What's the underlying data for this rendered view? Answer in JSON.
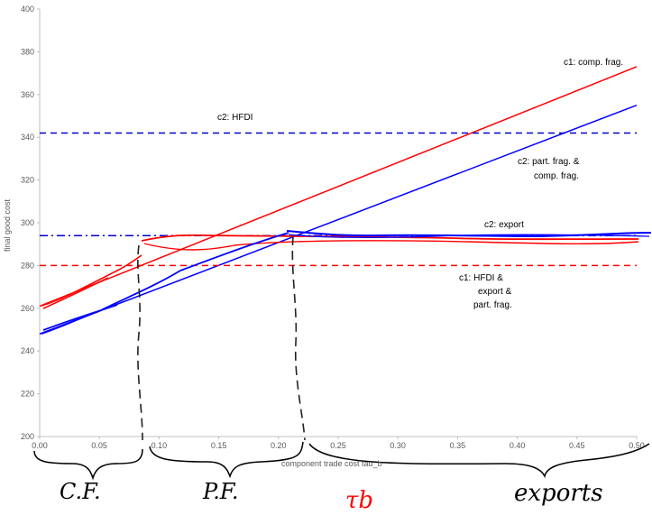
{
  "chart_data": {
    "type": "line",
    "title": "",
    "xlabel": "component trade cost tau_b",
    "ylabel": "final good cost",
    "xlim": [
      0.0,
      0.5
    ],
    "ylim": [
      200,
      400
    ],
    "x_ticks": [
      "0.00",
      "0.05",
      "0.10",
      "0.15",
      "0.20",
      "0.25",
      "0.30",
      "0.35",
      "0.40",
      "0.45",
      "0.50"
    ],
    "y_ticks": [
      "200",
      "220",
      "240",
      "260",
      "280",
      "300",
      "320",
      "340",
      "360",
      "380",
      "400"
    ],
    "grid": false,
    "series": [
      {
        "name": "c1: comp. frag.",
        "color": "#ff0000",
        "style": "solid",
        "x": [
          0.0,
          0.5
        ],
        "y": [
          261,
          373
        ]
      },
      {
        "name": "c2: part. frag. & comp. frag.",
        "color": "#0000ff",
        "style": "solid",
        "x": [
          0.0,
          0.5
        ],
        "y": [
          248,
          355
        ]
      },
      {
        "name": "c2: HFDI",
        "color": "#0000cc",
        "style": "dashed",
        "x": [
          0.0,
          0.5
        ],
        "y": [
          342,
          342
        ]
      },
      {
        "name": "c2: export",
        "color": "#0000cc",
        "style": "dashdot",
        "x": [
          0.0,
          0.5
        ],
        "y": [
          294,
          294
        ]
      },
      {
        "name": "c1: HFDI & export & part. frag.",
        "color": "#ff0000",
        "style": "dashed",
        "x": [
          0.0,
          0.5
        ],
        "y": [
          280,
          280
        ]
      }
    ],
    "annotations": [
      {
        "id": "c1_comp",
        "text": "c1: comp. frag."
      },
      {
        "id": "c2_hfdi",
        "text": "c2: HFDI"
      },
      {
        "id": "c2_part_1",
        "text": "c2: part. frag. &"
      },
      {
        "id": "c2_part_2",
        "text": "comp. frag."
      },
      {
        "id": "c2_export",
        "text": "c2: export"
      },
      {
        "id": "c1_hfdi_1",
        "text": "c1: HFDI &"
      },
      {
        "id": "c1_hfdi_2",
        "text": "export &"
      },
      {
        "id": "c1_hfdi_3",
        "text": "part. frag."
      }
    ],
    "handwritten": {
      "regions": [
        "C.F.",
        "P.F.",
        "exports"
      ],
      "axis_symbol": "τb",
      "thresholds": [
        0.085,
        0.21
      ]
    }
  }
}
